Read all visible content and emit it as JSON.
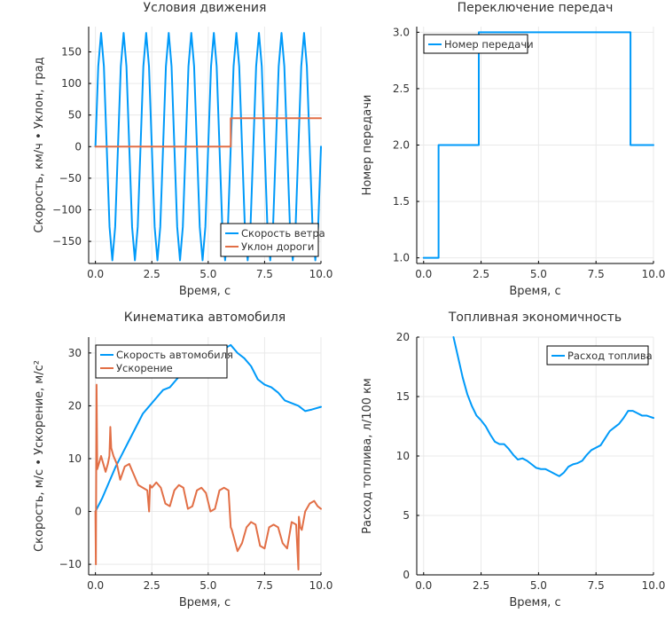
{
  "chart_data": [
    {
      "type": "line",
      "title": "Условия движения",
      "xlabel": "Время, с",
      "ylabel": "Скорость, км/ч  •  Уклон, град",
      "xlim": [
        -0.3,
        10.0
      ],
      "ylim": [
        -185,
        190
      ],
      "xticks": [
        0,
        2.5,
        5,
        7.5,
        10
      ],
      "xtick_labels": [
        "0.0",
        "2.5",
        "5.0",
        "7.5",
        "10.0"
      ],
      "yticks": [
        -150,
        -100,
        -50,
        0,
        50,
        100,
        150
      ],
      "ytick_labels": [
        "−150",
        "−100",
        "−50",
        "0",
        "50",
        "100",
        "150"
      ],
      "grid": true,
      "legend_position": "bottom-right",
      "series": [
        {
          "name": "Скорость ветра",
          "color": "#009af9",
          "x": [
            0,
            0.125,
            0.25,
            0.375,
            0.5,
            0.625,
            0.75,
            0.875,
            1,
            1.125,
            1.25,
            1.375,
            1.5,
            1.625,
            1.75,
            1.875,
            2,
            2.125,
            2.25,
            2.375,
            2.5,
            2.625,
            2.75,
            2.875,
            3,
            3.125,
            3.25,
            3.375,
            3.5,
            3.625,
            3.75,
            3.875,
            4,
            4.125,
            4.25,
            4.375,
            4.5,
            4.625,
            4.75,
            4.875,
            5,
            5.125,
            5.25,
            5.375,
            5.5,
            5.625,
            5.75,
            5.875,
            6,
            6.125,
            6.25,
            6.375,
            6.5,
            6.625,
            6.75,
            6.875,
            7,
            7.125,
            7.25,
            7.375,
            7.5,
            7.625,
            7.75,
            7.875,
            8,
            8.125,
            8.25,
            8.375,
            8.5,
            8.625,
            8.75,
            8.875,
            9,
            9.125,
            9.25,
            9.375,
            9.5,
            9.625,
            9.75,
            9.875,
            10
          ],
          "y": [
            0,
            127,
            180,
            127,
            0,
            -127,
            -180,
            -127,
            0,
            127,
            180,
            127,
            0,
            -127,
            -180,
            -127,
            0,
            127,
            180,
            127,
            0,
            -127,
            -180,
            -127,
            0,
            127,
            180,
            127,
            0,
            -127,
            -180,
            -127,
            0,
            127,
            180,
            127,
            0,
            -127,
            -180,
            -127,
            0,
            127,
            180,
            127,
            0,
            -127,
            -180,
            -127,
            0,
            127,
            180,
            127,
            0,
            -127,
            -180,
            -127,
            0,
            127,
            180,
            127,
            0,
            -127,
            -180,
            -127,
            0,
            127,
            180,
            127,
            0,
            -127,
            -180,
            -127,
            0,
            127,
            180,
            127,
            0,
            -127,
            -180,
            -127,
            0
          ]
        },
        {
          "name": "Уклон дороги",
          "color": "#e26f46",
          "x": [
            0,
            6.0,
            6.0,
            10.0
          ],
          "y": [
            0,
            0,
            45,
            45
          ]
        }
      ]
    },
    {
      "type": "line",
      "title": "Переключение передач",
      "xlabel": "Время, с",
      "ylabel": "Номер передачи",
      "xlim": [
        -0.3,
        10.0
      ],
      "ylim": [
        0.95,
        3.05
      ],
      "xticks": [
        0,
        2.5,
        5,
        7.5,
        10
      ],
      "xtick_labels": [
        "0.0",
        "2.5",
        "5.0",
        "7.5",
        "10.0"
      ],
      "yticks": [
        1,
        1.5,
        2,
        2.5,
        3
      ],
      "ytick_labels": [
        "1.0",
        "1.5",
        "2.0",
        "2.5",
        "3.0"
      ],
      "grid": true,
      "legend_position": "top-left",
      "series": [
        {
          "name": "Номер передачи",
          "color": "#009af9",
          "x": [
            0,
            0.65,
            0.65,
            2.4,
            2.4,
            9.0,
            9.0,
            10.0
          ],
          "y": [
            1,
            1,
            2,
            2,
            3,
            3,
            2,
            2
          ]
        }
      ]
    },
    {
      "type": "line",
      "title": "Кинематика автомобиля",
      "xlabel": "Время, с",
      "ylabel": "Скорость, м/с  •  Ускорение, м/с²",
      "xlim": [
        -0.3,
        10.0
      ],
      "ylim": [
        -12,
        33
      ],
      "xticks": [
        0,
        2.5,
        5,
        7.5,
        10
      ],
      "xtick_labels": [
        "0.0",
        "2.5",
        "5.0",
        "7.5",
        "10.0"
      ],
      "yticks": [
        -10,
        0,
        10,
        20,
        30
      ],
      "ytick_labels": [
        "−10",
        "0",
        "10",
        "20",
        "30"
      ],
      "grid": true,
      "legend_position": "top-left",
      "series": [
        {
          "name": "Скорость автомобиля",
          "color": "#009af9",
          "x": [
            0,
            0.3,
            0.6,
            0.9,
            1.2,
            1.5,
            1.8,
            2.1,
            2.4,
            2.7,
            3.0,
            3.3,
            3.6,
            3.9,
            4.2,
            4.5,
            4.8,
            5.1,
            5.4,
            5.7,
            6.0,
            6.3,
            6.6,
            6.9,
            7.2,
            7.5,
            7.8,
            8.1,
            8.4,
            8.7,
            9.0,
            9.3,
            9.6,
            10.0
          ],
          "y": [
            0,
            2.5,
            5.5,
            8.5,
            11,
            13.5,
            16,
            18.5,
            20,
            21.5,
            23,
            23.5,
            25,
            26.5,
            27,
            28.5,
            29,
            29.5,
            30.5,
            30.8,
            31.5,
            30,
            29,
            27.5,
            25,
            24,
            23.5,
            22.5,
            21,
            20.5,
            20,
            19,
            19.3,
            19.8
          ]
        },
        {
          "name": "Ускорение",
          "color": "#e26f46",
          "x": [
            0,
            0.02,
            0.05,
            0.08,
            0.15,
            0.25,
            0.35,
            0.45,
            0.55,
            0.62,
            0.66,
            0.7,
            0.8,
            0.95,
            1.1,
            1.3,
            1.5,
            1.7,
            1.9,
            2.1,
            2.3,
            2.38,
            2.42,
            2.5,
            2.7,
            2.9,
            3.1,
            3.3,
            3.5,
            3.7,
            3.9,
            4.1,
            4.3,
            4.5,
            4.7,
            4.9,
            5.1,
            5.3,
            5.5,
            5.7,
            5.9,
            6.0,
            6.05,
            6.3,
            6.5,
            6.7,
            6.9,
            7.1,
            7.3,
            7.5,
            7.7,
            7.9,
            8.1,
            8.3,
            8.5,
            8.7,
            8.9,
            9.0,
            9.02,
            9.08,
            9.15,
            9.3,
            9.5,
            9.7,
            9.85,
            10.0
          ],
          "y": [
            0,
            -10,
            24,
            8,
            9,
            10.5,
            9,
            7.5,
            9,
            10.5,
            16,
            12,
            10.5,
            9,
            6,
            8.5,
            9,
            7,
            5,
            4.5,
            4,
            0,
            5,
            4.5,
            5.5,
            4.5,
            1.5,
            1,
            4,
            5,
            4.5,
            0.5,
            1,
            4,
            4.5,
            3.5,
            0,
            0.5,
            4,
            4.5,
            4,
            -3,
            -3.5,
            -7.5,
            -6,
            -3,
            -2,
            -2.5,
            -6.5,
            -7,
            -3,
            -2.5,
            -3,
            -6,
            -7,
            -2,
            -2.5,
            -11,
            -1,
            -3,
            -3.5,
            0,
            1.5,
            2,
            1,
            0.5
          ]
        }
      ]
    },
    {
      "type": "line",
      "title": "Топливная экономичность",
      "xlabel": "Время, с",
      "ylabel": "Расход топлива, л/100 км",
      "xlim": [
        -0.3,
        10.0
      ],
      "ylim": [
        0,
        20
      ],
      "xticks": [
        0,
        2.5,
        5,
        7.5,
        10
      ],
      "xtick_labels": [
        "0.0",
        "2.5",
        "5.0",
        "7.5",
        "10.0"
      ],
      "yticks": [
        0,
        5,
        10,
        15,
        20
      ],
      "ytick_labels": [
        "0",
        "5",
        "10",
        "15",
        "20"
      ],
      "grid": true,
      "legend_position": "top-right",
      "series": [
        {
          "name": "Расход топлива",
          "color": "#009af9",
          "x": [
            1.3,
            1.5,
            1.7,
            1.9,
            2.1,
            2.3,
            2.5,
            2.7,
            2.9,
            3.1,
            3.3,
            3.5,
            3.7,
            3.9,
            4.1,
            4.3,
            4.5,
            4.7,
            4.9,
            5.1,
            5.3,
            5.5,
            5.7,
            5.9,
            6.1,
            6.3,
            6.5,
            6.7,
            6.9,
            7.1,
            7.3,
            7.5,
            7.7,
            7.9,
            8.1,
            8.3,
            8.5,
            8.7,
            8.9,
            9.1,
            9.3,
            9.5,
            9.7,
            9.85,
            10.0
          ],
          "y": [
            20,
            18.3,
            16.6,
            15.2,
            14.2,
            13.4,
            13,
            12.5,
            11.8,
            11.2,
            11,
            11,
            10.6,
            10.1,
            9.7,
            9.8,
            9.6,
            9.3,
            9.0,
            8.9,
            8.9,
            8.7,
            8.5,
            8.3,
            8.6,
            9.1,
            9.3,
            9.4,
            9.6,
            10.1,
            10.5,
            10.7,
            10.9,
            11.5,
            12.1,
            12.4,
            12.7,
            13.2,
            13.8,
            13.8,
            13.6,
            13.4,
            13.4,
            13.3,
            13.2
          ]
        }
      ]
    }
  ]
}
